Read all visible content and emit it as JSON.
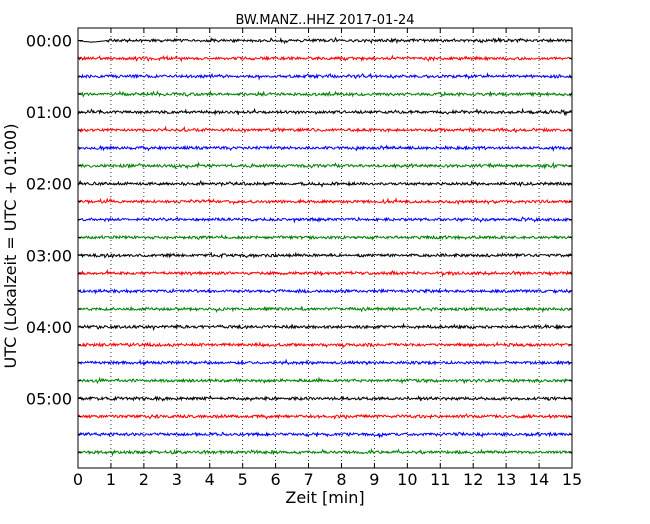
{
  "chart_data": {
    "type": "line",
    "title": "BW.MANZ..HHZ 2017-01-24",
    "xlabel": "Zeit  [min]",
    "ylabel": "UTC (Lokalzeit = UTC + 01:00)",
    "xlim": [
      0,
      15
    ],
    "x_ticks": [
      "0",
      "1",
      "2",
      "3",
      "4",
      "5",
      "6",
      "7",
      "8",
      "9",
      "10",
      "11",
      "12",
      "13",
      "14",
      "15"
    ],
    "y_tick_labels": [
      "00:00",
      "01:00",
      "02:00",
      "03:00",
      "04:00",
      "05:00"
    ],
    "rows_per_hour": 4,
    "row_count": 24,
    "row_colors": [
      "#000000",
      "#ff0000",
      "#0000ff",
      "#008000"
    ],
    "grid": {
      "x": true,
      "style": "dotted",
      "color": "#000000"
    },
    "series": [
      {
        "start": "00:00"
      },
      {
        "start": "00:15"
      },
      {
        "start": "00:30"
      },
      {
        "start": "00:45"
      },
      {
        "start": "01:00"
      },
      {
        "start": "01:15"
      },
      {
        "start": "01:30"
      },
      {
        "start": "01:45"
      },
      {
        "start": "02:00"
      },
      {
        "start": "02:15"
      },
      {
        "start": "02:30"
      },
      {
        "start": "02:45"
      },
      {
        "start": "03:00"
      },
      {
        "start": "03:15"
      },
      {
        "start": "03:30"
      },
      {
        "start": "03:45"
      },
      {
        "start": "04:00"
      },
      {
        "start": "04:15"
      },
      {
        "start": "04:30"
      },
      {
        "start": "04:45"
      },
      {
        "start": "05:00"
      },
      {
        "start": "05:15"
      },
      {
        "start": "05:30"
      },
      {
        "start": "05:45"
      }
    ]
  }
}
